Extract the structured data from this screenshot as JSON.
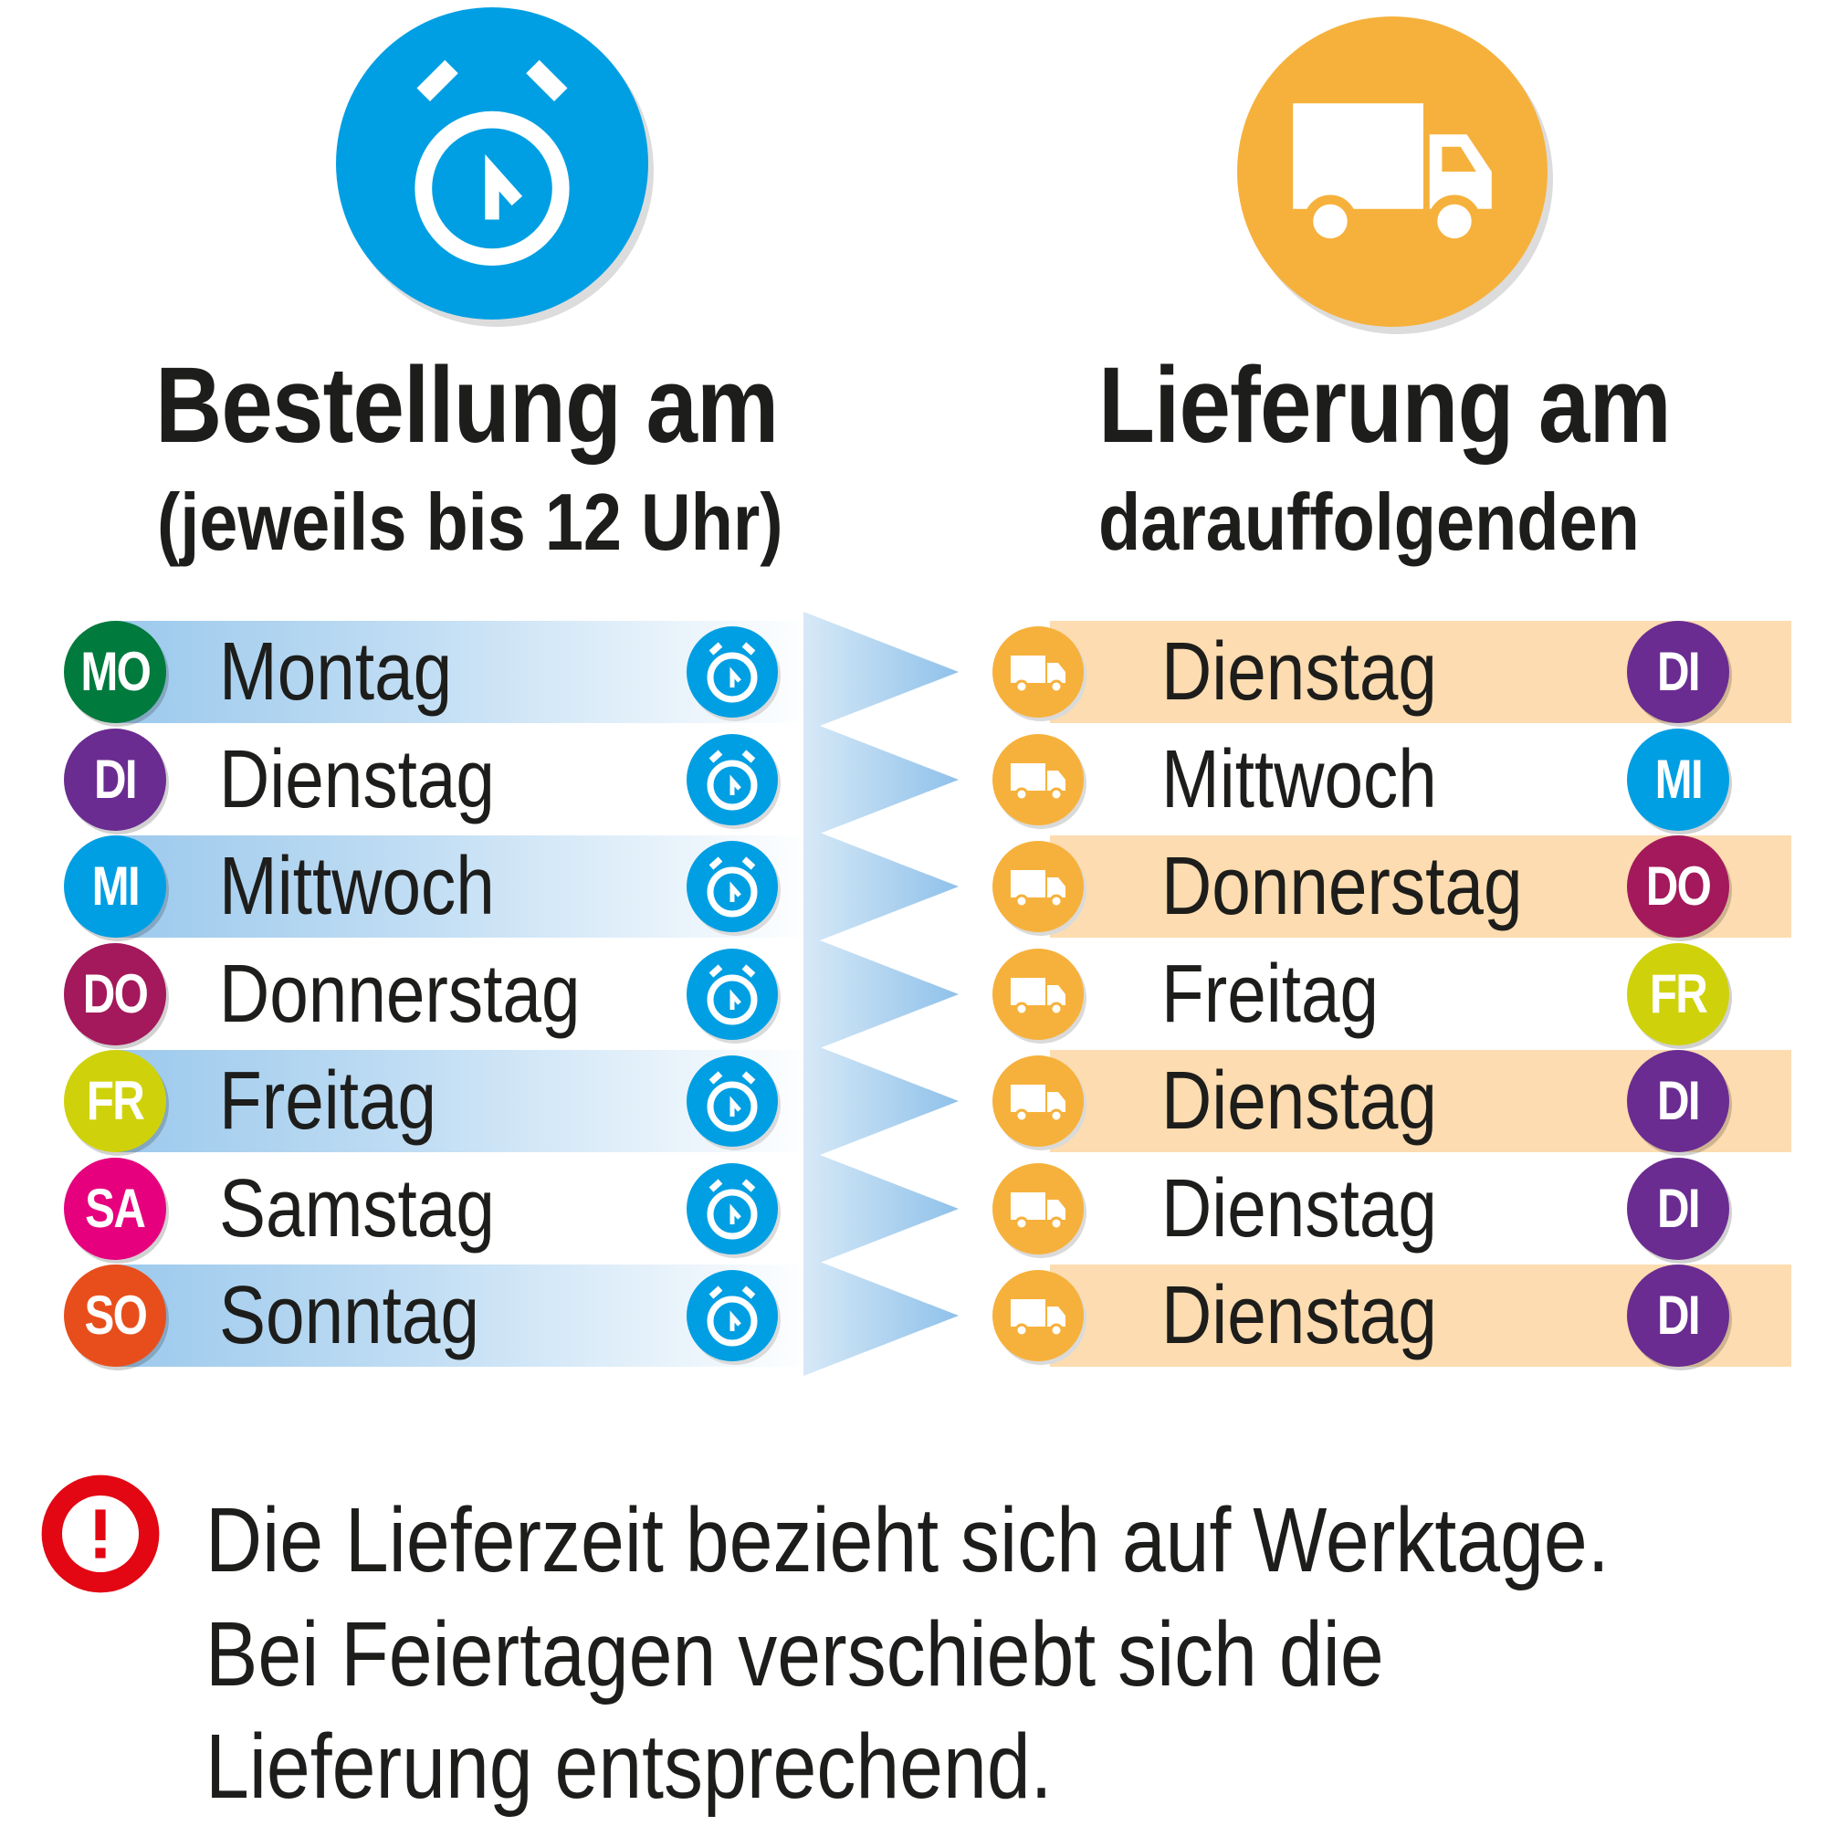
{
  "order_header": {
    "title": "Bestellung am",
    "subtitle": "(jeweils bis 12 Uhr)",
    "icon": "alarm-clock-icon",
    "color": "#009fe3"
  },
  "delivery_header": {
    "title": "Lieferung am",
    "subtitle": "darauffolgenden",
    "icon": "truck-icon",
    "color": "#f6b13c"
  },
  "colors": {
    "MO": "#007a3d",
    "DI": "#6a2c91",
    "MI": "#009fe3",
    "DO": "#a3195b",
    "FR": "#cfd20b",
    "SA": "#e6007e",
    "SO": "#e84e1b",
    "alert": "#e30613",
    "band_right": "#fcdcb0",
    "arrow": "#8fc1ea"
  },
  "rows": [
    {
      "order_abbr": "MO",
      "order_day": "Montag",
      "delivery_day": "Dienstag",
      "delivery_abbr": "DI"
    },
    {
      "order_abbr": "DI",
      "order_day": "Dienstag",
      "delivery_day": "Mittwoch",
      "delivery_abbr": "MI"
    },
    {
      "order_abbr": "MI",
      "order_day": "Mittwoch",
      "delivery_day": "Donnerstag",
      "delivery_abbr": "DO"
    },
    {
      "order_abbr": "DO",
      "order_day": "Donnerstag",
      "delivery_day": "Freitag",
      "delivery_abbr": "FR"
    },
    {
      "order_abbr": "FR",
      "order_day": "Freitag",
      "delivery_day": "Dienstag",
      "delivery_abbr": "DI"
    },
    {
      "order_abbr": "SA",
      "order_day": "Samstag",
      "delivery_day": "Dienstag",
      "delivery_abbr": "DI"
    },
    {
      "order_abbr": "SO",
      "order_day": "Sonntag",
      "delivery_day": "Dienstag",
      "delivery_abbr": "DI"
    }
  ],
  "note": {
    "icon": "exclamation-icon",
    "lines": [
      "Die Lieferzeit bezieht sich auf Werktage.",
      "Bei Feiertagen verschiebt sich die",
      "Lieferung entsprechend."
    ]
  }
}
